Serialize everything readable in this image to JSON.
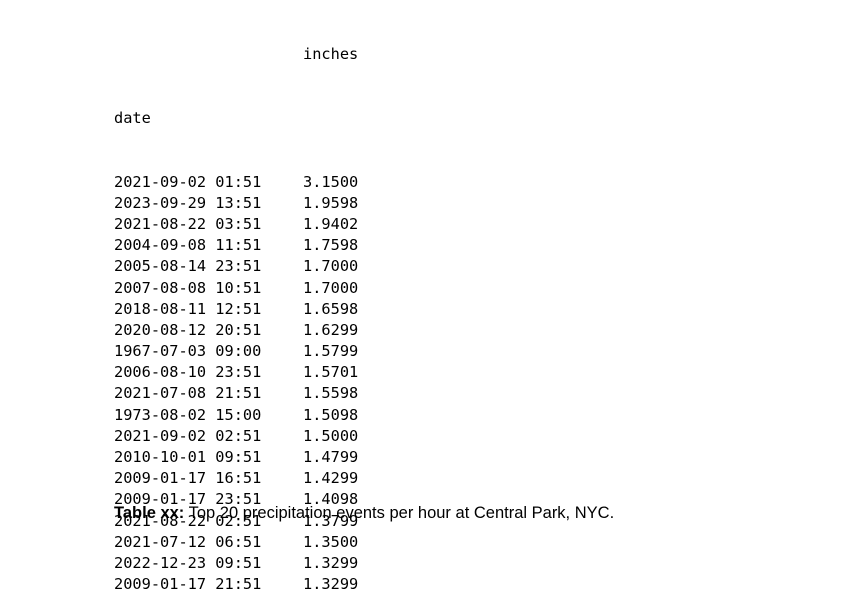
{
  "table": {
    "column_header": "inches",
    "index_name": "date",
    "rows": [
      {
        "date": "2021-09-02 01:51",
        "inches": "3.1500"
      },
      {
        "date": "2023-09-29 13:51",
        "inches": "1.9598"
      },
      {
        "date": "2021-08-22 03:51",
        "inches": "1.9402"
      },
      {
        "date": "2004-09-08 11:51",
        "inches": "1.7598"
      },
      {
        "date": "2005-08-14 23:51",
        "inches": "1.7000"
      },
      {
        "date": "2007-08-08 10:51",
        "inches": "1.7000"
      },
      {
        "date": "2018-08-11 12:51",
        "inches": "1.6598"
      },
      {
        "date": "2020-08-12 20:51",
        "inches": "1.6299"
      },
      {
        "date": "1967-07-03 09:00",
        "inches": "1.5799"
      },
      {
        "date": "2006-08-10 23:51",
        "inches": "1.5701"
      },
      {
        "date": "2021-07-08 21:51",
        "inches": "1.5598"
      },
      {
        "date": "1973-08-02 15:00",
        "inches": "1.5098"
      },
      {
        "date": "2021-09-02 02:51",
        "inches": "1.5000"
      },
      {
        "date": "2010-10-01 09:51",
        "inches": "1.4799"
      },
      {
        "date": "2009-01-17 16:51",
        "inches": "1.4299"
      },
      {
        "date": "2009-01-17 23:51",
        "inches": "1.4098"
      },
      {
        "date": "2021-08-22 02:51",
        "inches": "1.3799"
      },
      {
        "date": "2021-07-12 06:51",
        "inches": "1.3500"
      },
      {
        "date": "2022-12-23 09:51",
        "inches": "1.3299"
      },
      {
        "date": "2009-01-17 21:51",
        "inches": "1.3299"
      }
    ]
  },
  "caption": {
    "label": "Table xx:",
    "text": " Top 20 precipitation events per hour at Central Park, NYC."
  }
}
